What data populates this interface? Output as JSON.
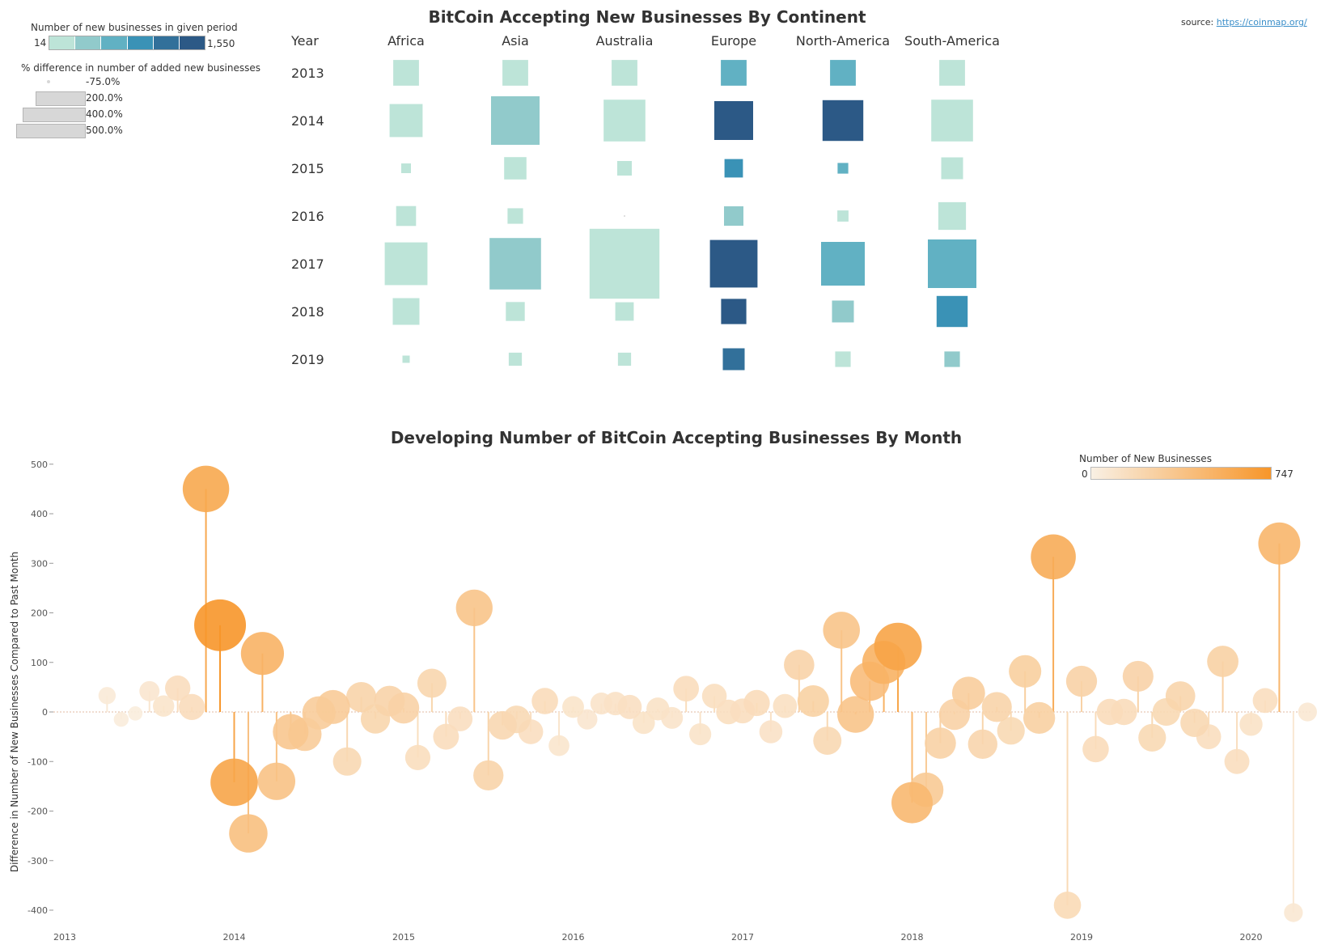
{
  "colors": {
    "blue_scale": [
      "#bde4d8",
      "#91cacb",
      "#61b1c3",
      "#3a92b6",
      "#32709a",
      "#2c5986"
    ],
    "orange_low": "#f9f0e4",
    "orange_high": "#f7962a",
    "gridline": "#e0b9a0",
    "axis_text": "#555555"
  },
  "legend_top": {
    "color_title": "Number of new businesses in given period",
    "color_min": "14",
    "color_max": "1,550",
    "size_title": "% difference in number of added new businesses",
    "size_items": [
      "-75.0%",
      "200.0%",
      "400.0%",
      "500.0%"
    ]
  },
  "source": {
    "prefix": "source: ",
    "link": "https://coinmap.org/"
  },
  "chart_data": [
    {
      "type": "heatmap",
      "title": "BitCoin Accepting New Businesses By Continent",
      "row_header": "Year",
      "columns": [
        "Africa",
        "Asia",
        "Australia",
        "Europe",
        "North-America",
        "South-America"
      ],
      "rows": [
        "2013",
        "2014",
        "2015",
        "2016",
        "2017",
        "2018",
        "2019"
      ],
      "color_measure": "Number of new businesses in given period",
      "color_range": [
        14,
        1550
      ],
      "size_measure": "% difference in number of added new businesses",
      "cells": [
        {
          "year": "2013",
          "continent": "Africa",
          "color_level": 0,
          "relative_size": 0.53
        },
        {
          "year": "2013",
          "continent": "Asia",
          "color_level": 0,
          "relative_size": 0.53
        },
        {
          "year": "2013",
          "continent": "Australia",
          "color_level": 0,
          "relative_size": 0.53
        },
        {
          "year": "2013",
          "continent": "Europe",
          "color_level": 2,
          "relative_size": 0.53
        },
        {
          "year": "2013",
          "continent": "North-America",
          "color_level": 2,
          "relative_size": 0.53
        },
        {
          "year": "2013",
          "continent": "South-America",
          "color_level": 0,
          "relative_size": 0.53
        },
        {
          "year": "2014",
          "continent": "Africa",
          "color_level": 0,
          "relative_size": 0.68
        },
        {
          "year": "2014",
          "continent": "Asia",
          "color_level": 1,
          "relative_size": 1.0
        },
        {
          "year": "2014",
          "continent": "Australia",
          "color_level": 0,
          "relative_size": 0.86
        },
        {
          "year": "2014",
          "continent": "Europe",
          "color_level": 5,
          "relative_size": 0.8
        },
        {
          "year": "2014",
          "continent": "North-America",
          "color_level": 5,
          "relative_size": 0.84
        },
        {
          "year": "2014",
          "continent": "South-America",
          "color_level": 0,
          "relative_size": 0.86
        },
        {
          "year": "2015",
          "continent": "Africa",
          "color_level": 0,
          "relative_size": 0.2
        },
        {
          "year": "2015",
          "continent": "Asia",
          "color_level": 0,
          "relative_size": 0.46
        },
        {
          "year": "2015",
          "continent": "Australia",
          "color_level": 0,
          "relative_size": 0.3
        },
        {
          "year": "2015",
          "continent": "Europe",
          "color_level": 3,
          "relative_size": 0.38
        },
        {
          "year": "2015",
          "continent": "North-America",
          "color_level": 2,
          "relative_size": 0.22
        },
        {
          "year": "2015",
          "continent": "South-America",
          "color_level": 0,
          "relative_size": 0.45
        },
        {
          "year": "2016",
          "continent": "Africa",
          "color_level": 0,
          "relative_size": 0.41
        },
        {
          "year": "2016",
          "continent": "Asia",
          "color_level": 0,
          "relative_size": 0.32
        },
        {
          "year": "2016",
          "continent": "Australia",
          "color_level": 0,
          "relative_size": 0.02
        },
        {
          "year": "2016",
          "continent": "Europe",
          "color_level": 1,
          "relative_size": 0.4
        },
        {
          "year": "2016",
          "continent": "North-America",
          "color_level": 0,
          "relative_size": 0.23
        },
        {
          "year": "2016",
          "continent": "South-America",
          "color_level": 0,
          "relative_size": 0.57
        },
        {
          "year": "2017",
          "continent": "Africa",
          "color_level": 0,
          "relative_size": 0.88
        },
        {
          "year": "2017",
          "continent": "Asia",
          "color_level": 1,
          "relative_size": 1.06
        },
        {
          "year": "2017",
          "continent": "Australia",
          "color_level": 0,
          "relative_size": 1.44
        },
        {
          "year": "2017",
          "continent": "Europe",
          "color_level": 5,
          "relative_size": 0.98
        },
        {
          "year": "2017",
          "continent": "North-America",
          "color_level": 2,
          "relative_size": 0.9
        },
        {
          "year": "2017",
          "continent": "South-America",
          "color_level": 2,
          "relative_size": 1.0
        },
        {
          "year": "2018",
          "continent": "Africa",
          "color_level": 0,
          "relative_size": 0.55
        },
        {
          "year": "2018",
          "continent": "Asia",
          "color_level": 0,
          "relative_size": 0.39
        },
        {
          "year": "2018",
          "continent": "Australia",
          "color_level": 0,
          "relative_size": 0.38
        },
        {
          "year": "2018",
          "continent": "Europe",
          "color_level": 5,
          "relative_size": 0.52
        },
        {
          "year": "2018",
          "continent": "North-America",
          "color_level": 1,
          "relative_size": 0.45
        },
        {
          "year": "2018",
          "continent": "South-America",
          "color_level": 3,
          "relative_size": 0.64
        },
        {
          "year": "2019",
          "continent": "Africa",
          "color_level": 0,
          "relative_size": 0.15
        },
        {
          "year": "2019",
          "continent": "Asia",
          "color_level": 0,
          "relative_size": 0.27
        },
        {
          "year": "2019",
          "continent": "Australia",
          "color_level": 0,
          "relative_size": 0.27
        },
        {
          "year": "2019",
          "continent": "Europe",
          "color_level": 4,
          "relative_size": 0.45
        },
        {
          "year": "2019",
          "continent": "North-America",
          "color_level": 0,
          "relative_size": 0.32
        },
        {
          "year": "2019",
          "continent": "South-America",
          "color_level": 1,
          "relative_size": 0.32
        }
      ]
    },
    {
      "type": "scatter",
      "title": "Developing Number of BitCoin Accepting Businesses By Month",
      "ylabel": "Difference in Number of New Businesses Compared to Past Month",
      "xlabel": "",
      "x_ticks": [
        "2013",
        "2014",
        "2015",
        "2016",
        "2017",
        "2018",
        "2019",
        "2020"
      ],
      "ylim": [
        -420,
        520
      ],
      "y_ticks": [
        500,
        400,
        300,
        200,
        100,
        0,
        -100,
        -200,
        -300,
        -400
      ],
      "color_legend_title": "Number of New Businesses",
      "color_min": "0",
      "color_max": "747",
      "points": [
        {
          "x": "2013-04",
          "y": 33,
          "n": 33
        },
        {
          "x": "2013-05",
          "y": -15,
          "n": 18
        },
        {
          "x": "2013-06",
          "y": -3,
          "n": 15
        },
        {
          "x": "2013-07",
          "y": 42,
          "n": 57
        },
        {
          "x": "2013-08",
          "y": 12,
          "n": 69
        },
        {
          "x": "2013-09",
          "y": 48,
          "n": 117
        },
        {
          "x": "2013-10",
          "y": 10,
          "n": 127
        },
        {
          "x": "2013-11",
          "y": 450,
          "n": 577
        },
        {
          "x": "2013-12",
          "y": 175,
          "n": 747
        },
        {
          "x": "2014-01",
          "y": -142,
          "n": 605
        },
        {
          "x": "2014-02",
          "y": -245,
          "n": 360
        },
        {
          "x": "2014-03",
          "y": 118,
          "n": 478
        },
        {
          "x": "2014-04",
          "y": -140,
          "n": 338
        },
        {
          "x": "2014-05",
          "y": -40,
          "n": 298
        },
        {
          "x": "2014-06",
          "y": -45,
          "n": 253
        },
        {
          "x": "2014-07",
          "y": -2,
          "n": 251
        },
        {
          "x": "2014-08",
          "y": 10,
          "n": 261
        },
        {
          "x": "2014-09",
          "y": -100,
          "n": 161
        },
        {
          "x": "2014-10",
          "y": 30,
          "n": 191
        },
        {
          "x": "2014-11",
          "y": -14,
          "n": 177
        },
        {
          "x": "2014-12",
          "y": 22,
          "n": 199
        },
        {
          "x": "2015-01",
          "y": 8,
          "n": 207
        },
        {
          "x": "2015-02",
          "y": -92,
          "n": 115
        },
        {
          "x": "2015-03",
          "y": 58,
          "n": 173
        },
        {
          "x": "2015-04",
          "y": -50,
          "n": 123
        },
        {
          "x": "2015-05",
          "y": -14,
          "n": 109
        },
        {
          "x": "2015-06",
          "y": 210,
          "n": 319
        },
        {
          "x": "2015-07",
          "y": -128,
          "n": 191
        },
        {
          "x": "2015-08",
          "y": -27,
          "n": 164
        },
        {
          "x": "2015-09",
          "y": -15,
          "n": 149
        },
        {
          "x": "2015-10",
          "y": -40,
          "n": 109
        },
        {
          "x": "2015-11",
          "y": 22,
          "n": 131
        },
        {
          "x": "2015-12",
          "y": -68,
          "n": 63
        },
        {
          "x": "2016-01",
          "y": 10,
          "n": 73
        },
        {
          "x": "2016-02",
          "y": -15,
          "n": 58
        },
        {
          "x": "2016-03",
          "y": 17,
          "n": 75
        },
        {
          "x": "2016-04",
          "y": 17,
          "n": 92
        },
        {
          "x": "2016-05",
          "y": 10,
          "n": 102
        },
        {
          "x": "2016-06",
          "y": -22,
          "n": 80
        },
        {
          "x": "2016-07",
          "y": 6,
          "n": 86
        },
        {
          "x": "2016-08",
          "y": -12,
          "n": 74
        },
        {
          "x": "2016-09",
          "y": 47,
          "n": 121
        },
        {
          "x": "2016-10",
          "y": -45,
          "n": 76
        },
        {
          "x": "2016-11",
          "y": 32,
          "n": 108
        },
        {
          "x": "2016-12",
          "y": 0,
          "n": 108
        },
        {
          "x": "2017-01",
          "y": 2,
          "n": 110
        },
        {
          "x": "2017-02",
          "y": 18,
          "n": 128
        },
        {
          "x": "2017-03",
          "y": -40,
          "n": 88
        },
        {
          "x": "2017-04",
          "y": 12,
          "n": 100
        },
        {
          "x": "2017-05",
          "y": 95,
          "n": 195
        },
        {
          "x": "2017-06",
          "y": 22,
          "n": 217
        },
        {
          "x": "2017-07",
          "y": -58,
          "n": 159
        },
        {
          "x": "2017-08",
          "y": 165,
          "n": 324
        },
        {
          "x": "2017-09",
          "y": -5,
          "n": 319
        },
        {
          "x": "2017-10",
          "y": 62,
          "n": 381
        },
        {
          "x": "2017-11",
          "y": 100,
          "n": 481
        },
        {
          "x": "2017-12",
          "y": 132,
          "n": 613
        },
        {
          "x": "2018-01",
          "y": -183,
          "n": 430
        },
        {
          "x": "2018-02",
          "y": -157,
          "n": 273
        },
        {
          "x": "2018-03",
          "y": -63,
          "n": 210
        },
        {
          "x": "2018-04",
          "y": -5,
          "n": 205
        },
        {
          "x": "2018-05",
          "y": 38,
          "n": 243
        },
        {
          "x": "2018-06",
          "y": -65,
          "n": 178
        },
        {
          "x": "2018-07",
          "y": 10,
          "n": 188
        },
        {
          "x": "2018-08",
          "y": -38,
          "n": 150
        },
        {
          "x": "2018-09",
          "y": 82,
          "n": 232
        },
        {
          "x": "2018-10",
          "y": -12,
          "n": 220
        },
        {
          "x": "2018-11",
          "y": 313,
          "n": 533
        },
        {
          "x": "2018-12",
          "y": -390,
          "n": 143
        },
        {
          "x": "2019-01",
          "y": 62,
          "n": 205
        },
        {
          "x": "2019-02",
          "y": -75,
          "n": 130
        },
        {
          "x": "2019-03",
          "y": 0,
          "n": 130
        },
        {
          "x": "2019-04",
          "y": 0,
          "n": 130
        },
        {
          "x": "2019-05",
          "y": 72,
          "n": 202
        },
        {
          "x": "2019-06",
          "y": -52,
          "n": 150
        },
        {
          "x": "2019-07",
          "y": 0,
          "n": 150
        },
        {
          "x": "2019-08",
          "y": 32,
          "n": 182
        },
        {
          "x": "2019-09",
          "y": -22,
          "n": 160
        },
        {
          "x": "2019-10",
          "y": -50,
          "n": 110
        },
        {
          "x": "2019-11",
          "y": 102,
          "n": 212
        },
        {
          "x": "2019-12",
          "y": -100,
          "n": 112
        },
        {
          "x": "2020-01",
          "y": -25,
          "n": 87
        },
        {
          "x": "2020-02",
          "y": 23,
          "n": 110
        },
        {
          "x": "2020-03",
          "y": 340,
          "n": 450
        },
        {
          "x": "2020-04",
          "y": -405,
          "n": 45
        },
        {
          "x": "2020-05",
          "y": 0,
          "n": 45
        }
      ]
    }
  ]
}
